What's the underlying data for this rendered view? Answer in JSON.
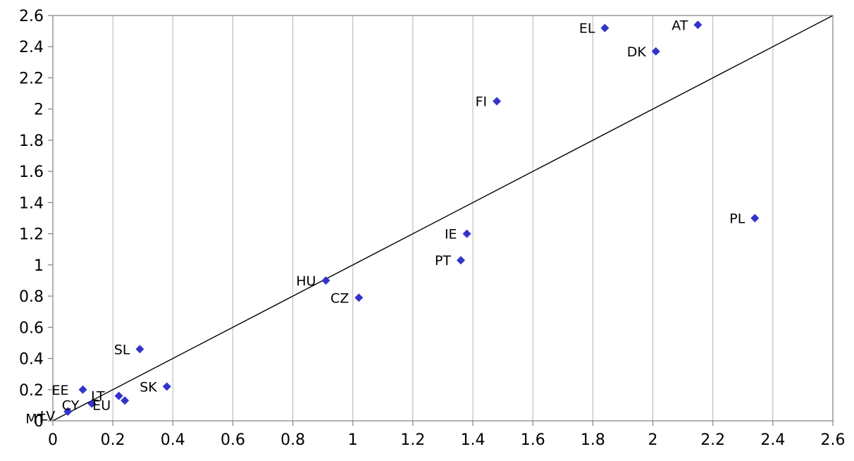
{
  "chart_data": {
    "type": "scatter",
    "title": "",
    "xlabel": "",
    "ylabel": "",
    "xlim": [
      0,
      2.6
    ],
    "ylim": [
      0,
      2.6
    ],
    "x_ticks": [
      "0",
      "0.2",
      "0.4",
      "0.6",
      "0.8",
      "1",
      "1.2",
      "1.4",
      "1.6",
      "1.8",
      "2",
      "2.2",
      "2.4",
      "2.6"
    ],
    "y_ticks": [
      "0",
      "0.2",
      "0.4",
      "0.6",
      "0.8",
      "1",
      "1.2",
      "1.4",
      "1.6",
      "1.8",
      "2",
      "2.2",
      "2.4",
      "2.6"
    ],
    "grid": {
      "vertical": true,
      "horizontal": false
    },
    "marker": {
      "shape": "diamond",
      "color": "#3333cc"
    },
    "reference_line": {
      "from": [
        0,
        0
      ],
      "to": [
        2.6,
        2.6
      ],
      "color": "#000000"
    },
    "points": [
      {
        "label": "AT",
        "x": 2.15,
        "y": 2.54
      },
      {
        "label": "EL",
        "x": 1.84,
        "y": 2.52
      },
      {
        "label": "DK",
        "x": 2.01,
        "y": 2.37
      },
      {
        "label": "FI",
        "x": 1.48,
        "y": 2.05
      },
      {
        "label": "PL",
        "x": 2.34,
        "y": 1.3
      },
      {
        "label": "IE",
        "x": 1.38,
        "y": 1.2
      },
      {
        "label": "PT",
        "x": 1.36,
        "y": 1.03
      },
      {
        "label": "HU",
        "x": 0.91,
        "y": 0.9
      },
      {
        "label": "CZ",
        "x": 1.02,
        "y": 0.79
      },
      {
        "label": "SL",
        "x": 0.29,
        "y": 0.46
      },
      {
        "label": "SK",
        "x": 0.38,
        "y": 0.22
      },
      {
        "label": "EE",
        "x": 0.1,
        "y": 0.2
      },
      {
        "label": "CY",
        "x": 0.13,
        "y": 0.11
      },
      {
        "label": "LT",
        "x": 0.22,
        "y": 0.16
      },
      {
        "label": "EU",
        "x": 0.24,
        "y": 0.13
      },
      {
        "label": "LV",
        "x": 0.05,
        "y": 0.06
      },
      {
        "label": "MT",
        "x": 0.05,
        "y": 0.06
      }
    ]
  }
}
